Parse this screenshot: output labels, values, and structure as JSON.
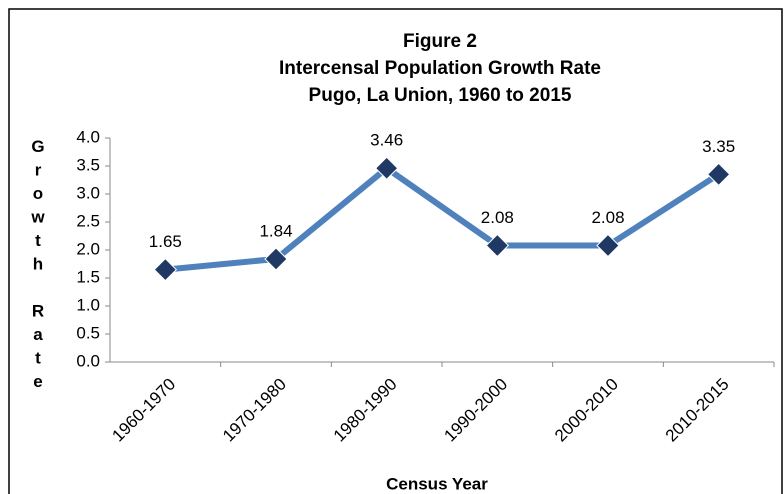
{
  "chart_data": {
    "type": "line",
    "title": [
      "Figure 2",
      "Intercensal Population Growth Rate",
      "Pugo, La Union, 1960 to 2015"
    ],
    "x_label": "Census Year",
    "y_label": "Growth Rate",
    "categories": [
      "1960-1970",
      "1970-1980",
      "1980-1990",
      "1990-2000",
      "2000-2010",
      "2010-2015"
    ],
    "values": [
      1.65,
      1.84,
      3.46,
      2.08,
      2.08,
      3.35
    ],
    "color": "#4f81bd",
    "marker_color": "#1f3864",
    "ylim": [
      0,
      4
    ],
    "yticks": [
      {
        "value": 0,
        "label": "0.0"
      },
      0.5,
      {
        "value": 1,
        "label": "1.0"
      },
      1.5,
      {
        "value": 2,
        "label": "2.0"
      },
      2.5,
      {
        "value": 3,
        "label": "3.0"
      },
      3.5,
      {
        "value": 4,
        "label": "4.0"
      }
    ],
    "grid": false
  }
}
